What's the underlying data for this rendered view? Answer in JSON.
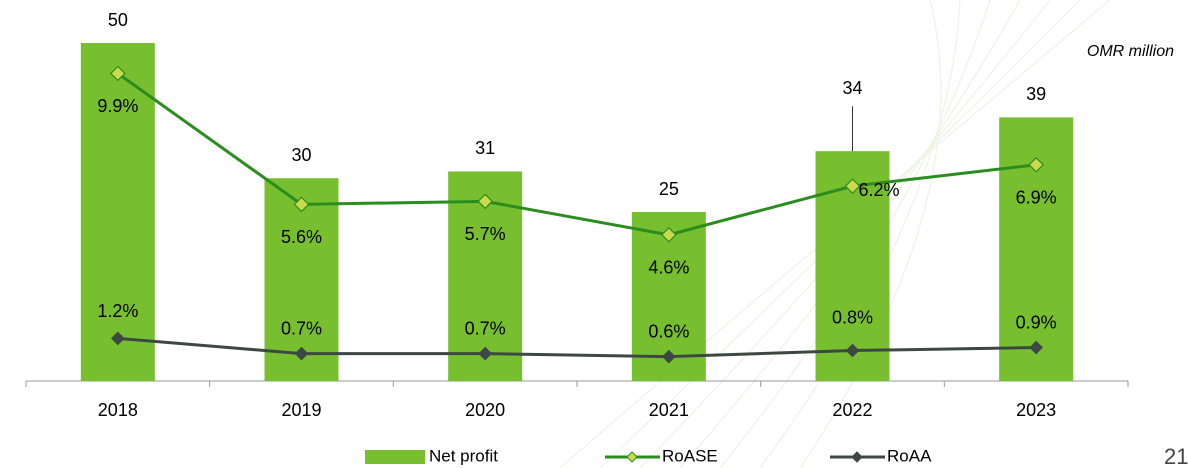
{
  "chart_data": {
    "type": "bar",
    "annotation": "OMR million",
    "page_number": "21",
    "categories": [
      "2018",
      "2019",
      "2020",
      "2021",
      "2022",
      "2023"
    ],
    "ylim": [
      0,
      50
    ],
    "y2lim": [
      -0.2,
      10.9
    ],
    "series": [
      {
        "name": "Net profit",
        "type": "bar",
        "color": "#77bf2f",
        "values": [
          50,
          30,
          31,
          25,
          34,
          39
        ]
      },
      {
        "name": "RoASE",
        "type": "line",
        "axis": "y2",
        "color": "#2b8c1f",
        "marker_color": "#c9db4c",
        "values": [
          9.9,
          5.6,
          5.7,
          4.6,
          6.2,
          6.9
        ],
        "value_labels": [
          "9.9%",
          "5.6%",
          "5.7%",
          "4.6%",
          "6.2%",
          "6.9%"
        ]
      },
      {
        "name": "RoAA",
        "type": "line",
        "axis": "y2",
        "color": "#3c4843",
        "marker_color": "#3c4843",
        "values": [
          1.2,
          0.7,
          0.7,
          0.6,
          0.8,
          0.9
        ],
        "value_labels": [
          "1.2%",
          "0.7%",
          "0.7%",
          "0.6%",
          "0.8%",
          "0.9%"
        ]
      }
    ]
  }
}
